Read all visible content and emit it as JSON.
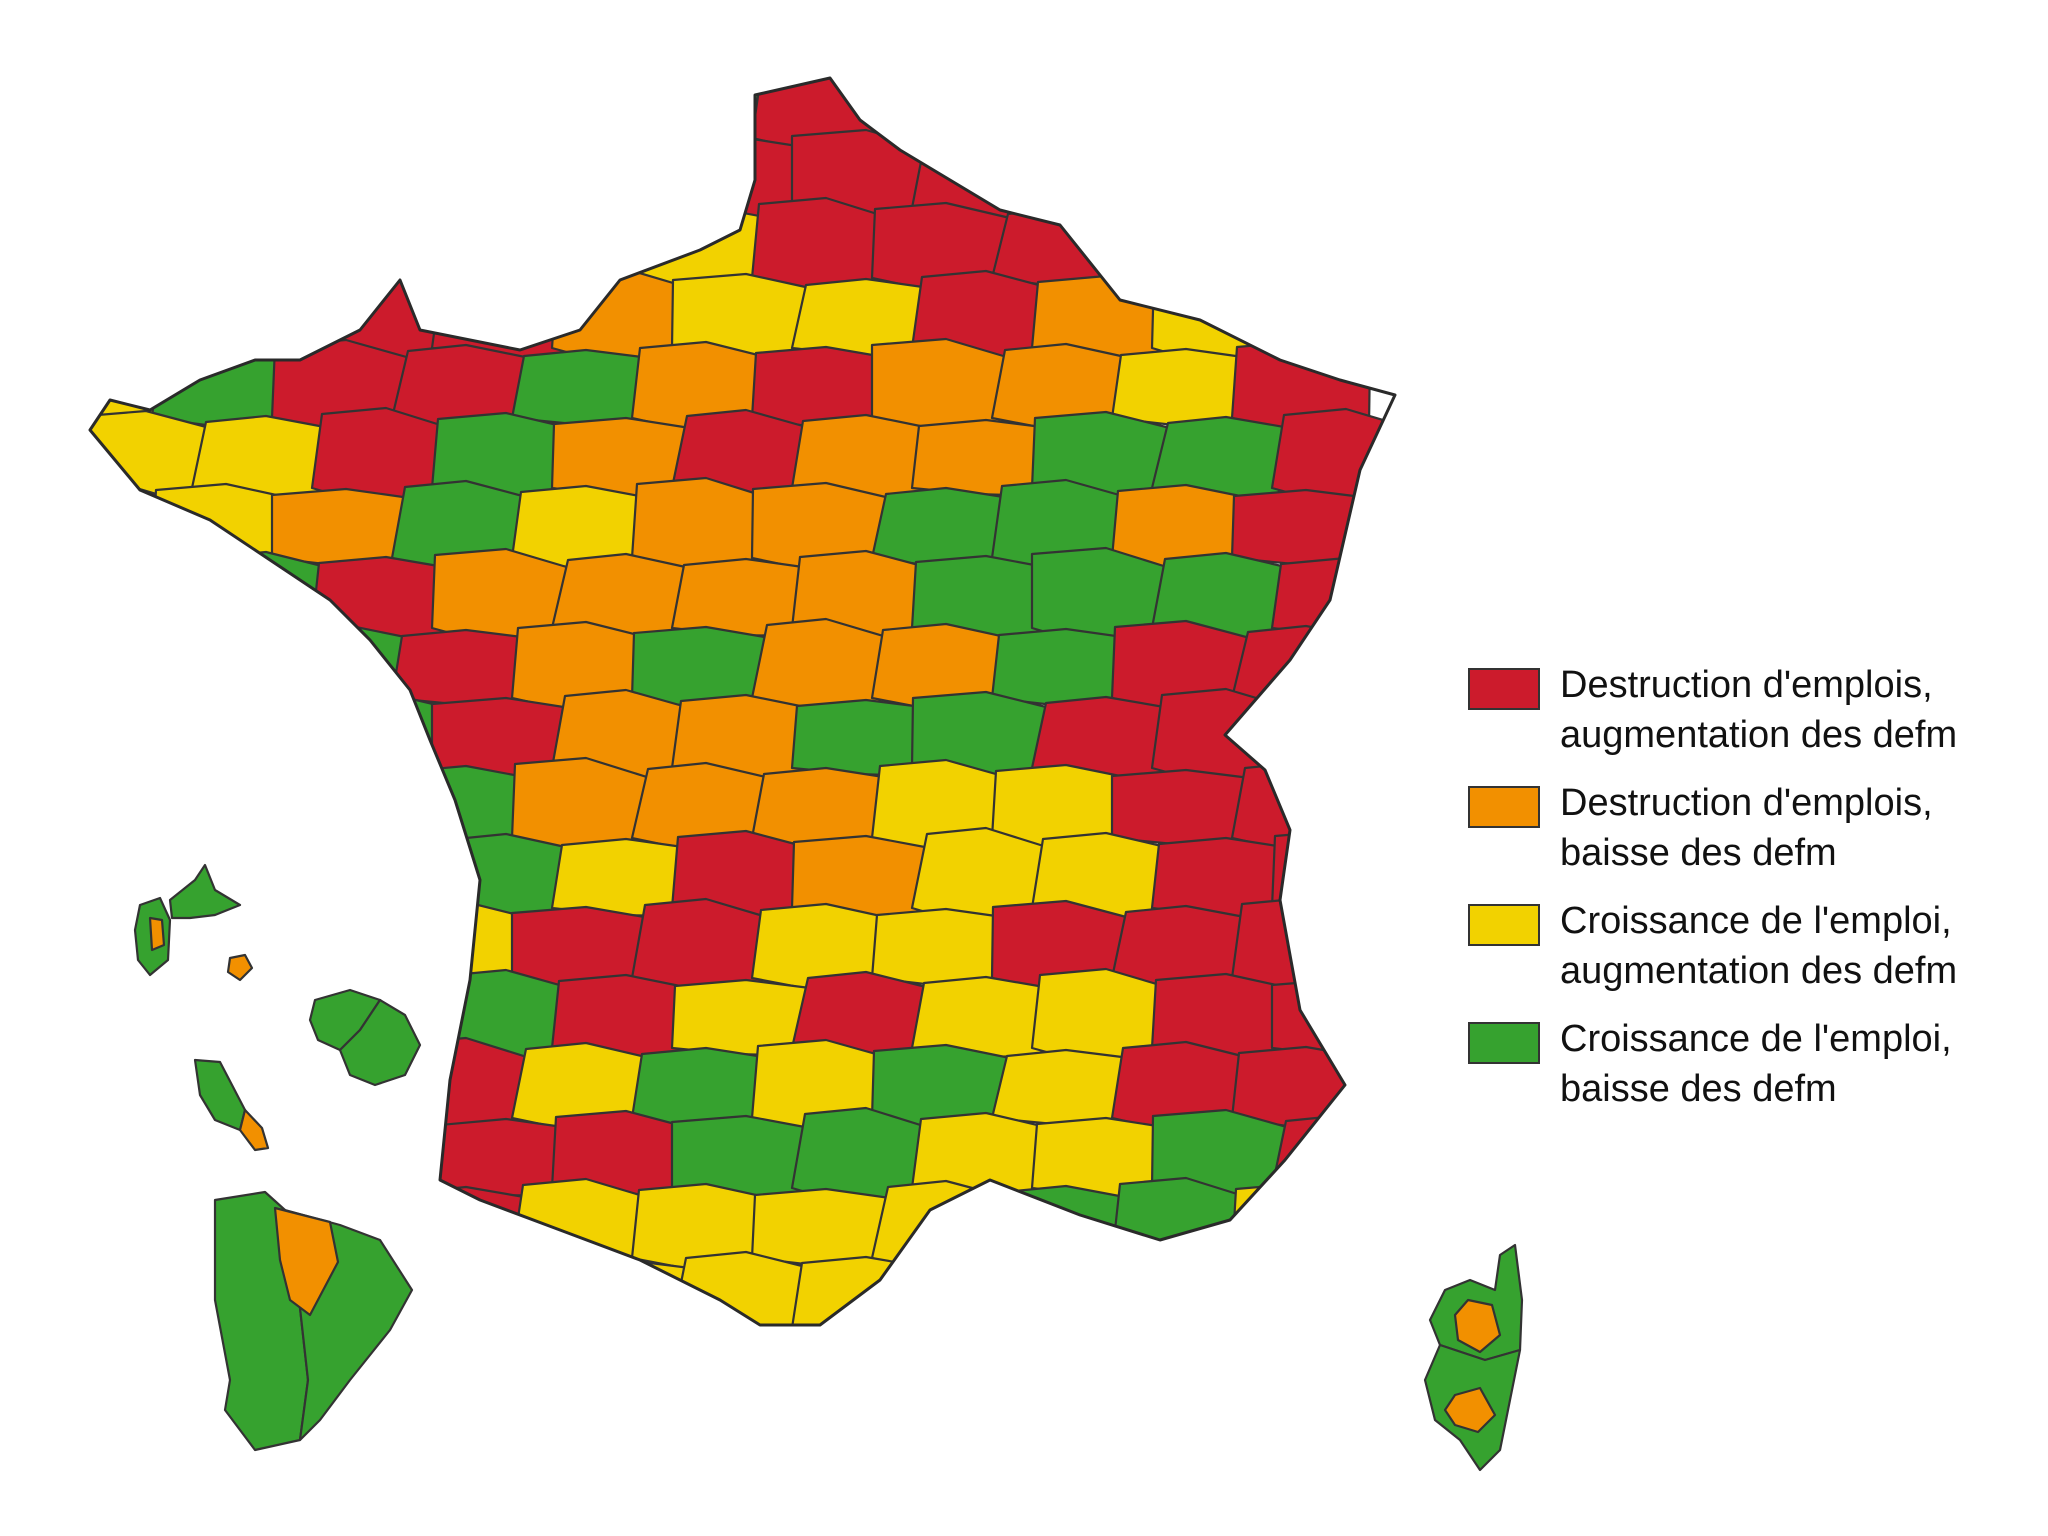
{
  "legend": [
    {
      "line1": "Destruction d'emplois,",
      "line2": "augmentation des defm",
      "color": "#cc1b2c"
    },
    {
      "line1": "Destruction d'emplois,",
      "line2": "baisse des defm",
      "color": "#f29000"
    },
    {
      "line1": "Croissance de l'emploi,",
      "line2": "augmentation des defm",
      "color": "#f2d200"
    },
    {
      "line1": "Croissance de l'emploi,",
      "line2": "baisse des defm",
      "color": "#36a22f"
    }
  ],
  "categories": {
    "destruction_up": "#cc1b2c",
    "destruction_down": "#f29000",
    "croissance_up": "#f2d200",
    "croissance_down": "#36a22f"
  }
}
